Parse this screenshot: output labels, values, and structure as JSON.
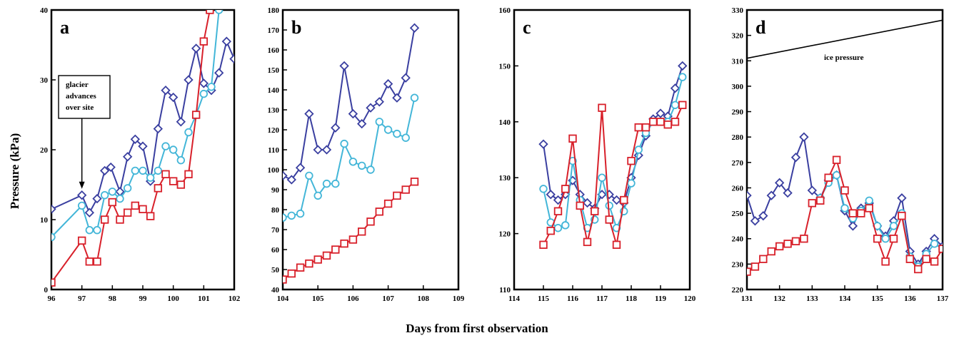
{
  "figure": {
    "ylabel": "Pressure (kPa)",
    "xlabel": "Days from first observation"
  },
  "colors": {
    "dark_blue": "#3a3fa0",
    "light_blue": "#43b6d8",
    "red": "#d8202a",
    "black": "#000000"
  },
  "chart_data": [
    {
      "panel": "a",
      "type": "line",
      "xlim": [
        96,
        102
      ],
      "ylim": [
        0,
        40
      ],
      "xticks": [
        96,
        97,
        98,
        99,
        100,
        101,
        102
      ],
      "yticks": [
        0,
        10,
        20,
        30,
        40
      ],
      "annotations": [
        {
          "text": [
            "glacier",
            "advances",
            "over site"
          ],
          "arrow_x": 97,
          "arrow_to_y": 14
        }
      ],
      "series": [
        {
          "color": "#3a3fa0",
          "marker": "diamond",
          "x": [
            96,
            97,
            97.25,
            97.5,
            97.75,
            97.95,
            98.25,
            98.5,
            98.75,
            99,
            99.25,
            99.5,
            99.75,
            100,
            100.25,
            100.5,
            100.75,
            101,
            101.25,
            101.5,
            101.75,
            102
          ],
          "y": [
            11.5,
            13.5,
            11,
            13,
            17,
            17.5,
            14,
            19,
            21.5,
            20.5,
            15.5,
            23,
            28.5,
            27.5,
            24,
            30,
            34.5,
            29.5,
            28.5,
            31,
            35.5,
            33
          ]
        },
        {
          "color": "#43b6d8",
          "marker": "circle",
          "x": [
            96,
            97,
            97.25,
            97.5,
            97.75,
            98,
            98.25,
            98.5,
            98.75,
            99,
            99.25,
            99.5,
            99.75,
            100,
            100.25,
            100.5,
            100.75,
            101,
            101.25,
            101.5
          ],
          "y": [
            7.5,
            12,
            8.5,
            8.5,
            13.5,
            14,
            13,
            14.5,
            17,
            17,
            16,
            17,
            20.5,
            20,
            18.5,
            22.5,
            25,
            28,
            29,
            40
          ]
        },
        {
          "color": "#d8202a",
          "marker": "square",
          "x": [
            96,
            97,
            97.25,
            97.5,
            97.75,
            98,
            98.25,
            98.5,
            98.75,
            99,
            99.25,
            99.5,
            99.75,
            100,
            100.25,
            100.5,
            100.75,
            101,
            101.2
          ],
          "y": [
            1,
            7,
            4,
            4,
            10,
            12.5,
            10,
            11,
            12,
            11.5,
            10.5,
            14.5,
            16.5,
            15.5,
            15,
            16.5,
            25,
            35.5,
            40
          ]
        }
      ]
    },
    {
      "panel": "b",
      "type": "line",
      "xlim": [
        104,
        109
      ],
      "ylim": [
        40,
        180
      ],
      "xticks": [
        104,
        105,
        106,
        107,
        108,
        109
      ],
      "yticks": [
        40,
        50,
        60,
        70,
        80,
        90,
        100,
        110,
        120,
        130,
        140,
        150,
        160,
        170,
        180
      ],
      "series": [
        {
          "color": "#3a3fa0",
          "marker": "diamond",
          "x": [
            104,
            104.25,
            104.5,
            104.75,
            105,
            105.25,
            105.5,
            105.75,
            106,
            106.25,
            106.5,
            106.75,
            107,
            107.25,
            107.5,
            107.75
          ],
          "y": [
            97,
            95,
            101,
            128,
            110,
            110,
            121,
            152,
            128,
            123,
            131,
            134,
            143,
            136,
            146,
            171
          ]
        },
        {
          "color": "#43b6d8",
          "marker": "circle",
          "x": [
            104,
            104.25,
            104.5,
            104.75,
            105,
            105.25,
            105.5,
            105.75,
            106,
            106.25,
            106.5,
            106.75,
            107,
            107.25,
            107.5,
            107.75
          ],
          "y": [
            76,
            77,
            78,
            97,
            87,
            93,
            93,
            113,
            104,
            102,
            100,
            124,
            120,
            118,
            116,
            136
          ]
        },
        {
          "color": "#d8202a",
          "marker": "square",
          "x": [
            104,
            104.25,
            104.5,
            104.75,
            105,
            105.25,
            105.5,
            105.75,
            106,
            106.25,
            106.5,
            106.75,
            107,
            107.25,
            107.5,
            107.75
          ],
          "y": [
            45,
            48,
            51,
            53,
            55,
            57,
            60,
            63,
            65,
            69,
            74,
            79,
            83,
            87,
            90,
            94
          ]
        }
      ]
    },
    {
      "panel": "c",
      "type": "line",
      "xlim": [
        114,
        120
      ],
      "ylim": [
        110,
        160
      ],
      "xticks": [
        114,
        115,
        116,
        117,
        118,
        119,
        120
      ],
      "yticks": [
        110,
        120,
        130,
        140,
        150,
        160
      ],
      "series": [
        {
          "color": "#3a3fa0",
          "marker": "diamond",
          "x": [
            115,
            115.25,
            115.5,
            115.75,
            116,
            116.25,
            116.5,
            116.75,
            117,
            117.25,
            117.5,
            117.75,
            118,
            118.25,
            118.5,
            118.75,
            119,
            119.25,
            119.5,
            119.75
          ],
          "y": [
            136,
            127,
            126,
            127,
            129.5,
            127,
            125.5,
            124.5,
            127,
            127,
            126,
            125.5,
            130,
            134,
            137.5,
            140.5,
            141.5,
            141,
            146,
            150
          ]
        },
        {
          "color": "#43b6d8",
          "marker": "circle",
          "x": [
            115,
            115.25,
            115.5,
            115.75,
            116,
            116.25,
            116.5,
            116.75,
            117,
            117.25,
            117.5,
            117.75,
            118,
            118.25,
            118.5,
            118.75,
            119,
            119.25,
            119.5,
            119.75
          ],
          "y": [
            128,
            122,
            121,
            121.5,
            133,
            126,
            121,
            122.5,
            130,
            125,
            121,
            124,
            129,
            135,
            138,
            140,
            140,
            140,
            143,
            148
          ]
        },
        {
          "color": "#d8202a",
          "marker": "square",
          "x": [
            115,
            115.25,
            115.5,
            115.75,
            116,
            116.25,
            116.5,
            116.75,
            117,
            117.25,
            117.5,
            117.75,
            118,
            118.25,
            118.5,
            118.75,
            119,
            119.25,
            119.5,
            119.75
          ],
          "y": [
            118,
            120.5,
            124,
            128,
            137,
            125,
            118.5,
            124,
            142.5,
            122.5,
            118,
            126,
            133,
            139,
            139,
            140,
            140,
            139.5,
            140,
            143
          ]
        }
      ]
    },
    {
      "panel": "d",
      "type": "line",
      "xlim": [
        131,
        137
      ],
      "ylim": [
        220,
        330
      ],
      "xticks": [
        131,
        132,
        133,
        134,
        135,
        136,
        137
      ],
      "yticks": [
        220,
        230,
        240,
        250,
        260,
        270,
        280,
        290,
        300,
        310,
        320,
        330
      ],
      "annotations": [
        {
          "text": "ice pressure"
        }
      ],
      "series": [
        {
          "name": "ice pressure",
          "color": "#000000",
          "marker": "none",
          "x": [
            131,
            137
          ],
          "y": [
            311,
            326
          ]
        },
        {
          "color": "#3a3fa0",
          "marker": "diamond",
          "x": [
            131,
            131.25,
            131.5,
            131.75,
            132,
            132.25,
            132.5,
            132.75,
            133,
            133.25,
            133.5,
            133.75,
            134,
            134.25,
            134.5,
            134.75,
            135,
            135.25,
            135.5,
            135.75,
            136,
            136.25,
            136.5,
            136.75,
            137
          ],
          "y": [
            257,
            247,
            249,
            257,
            262,
            258,
            272,
            280,
            259,
            256,
            263,
            265,
            251,
            245,
            252,
            254,
            245,
            241,
            247,
            256,
            235,
            230,
            235,
            240,
            237
          ]
        },
        {
          "color": "#43b6d8",
          "marker": "circle",
          "x": [
            133.25,
            133.5,
            133.75,
            134,
            134.25,
            134.5,
            134.75,
            135,
            135.25,
            135.5,
            135.75,
            136,
            136.25,
            136.5,
            136.75,
            137
          ],
          "y": [
            256,
            262,
            265,
            252,
            248,
            251,
            255,
            245,
            240,
            245,
            250,
            233,
            229,
            234,
            238,
            236
          ]
        },
        {
          "color": "#d8202a",
          "marker": "square",
          "x": [
            131,
            131.25,
            131.5,
            131.75,
            132,
            132.25,
            132.5,
            132.75,
            133,
            133.25,
            133.5,
            133.75,
            134,
            134.25,
            134.5,
            134.75,
            135,
            135.25,
            135.5,
            135.75,
            136,
            136.25,
            136.5,
            136.75,
            137
          ],
          "y": [
            227,
            229,
            232,
            235,
            237,
            238,
            239,
            240,
            254,
            255,
            264,
            271,
            259,
            250,
            250,
            252,
            240,
            231,
            240,
            249,
            232,
            228,
            232,
            231,
            236
          ]
        }
      ]
    }
  ]
}
